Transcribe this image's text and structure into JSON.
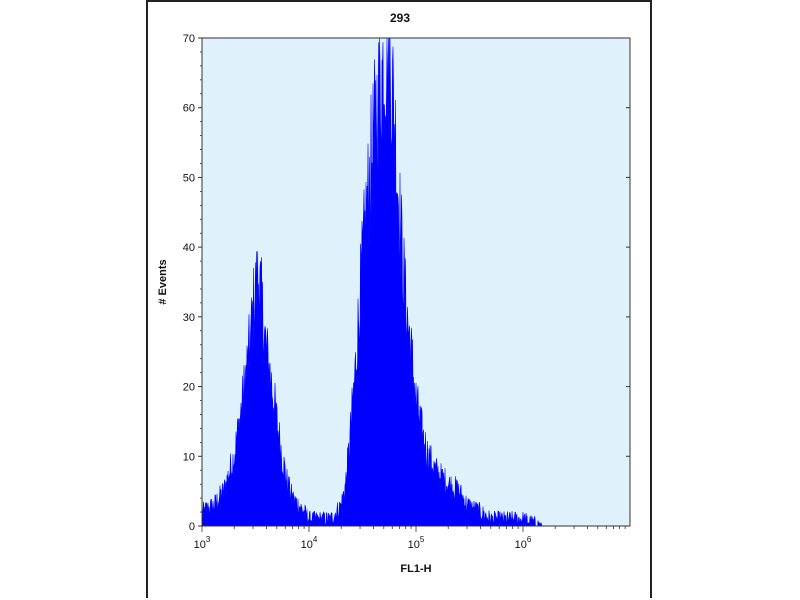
{
  "chart_data": {
    "type": "area",
    "title": "293",
    "xlabel": "FL1-H",
    "ylabel": "# Events",
    "x_scale": "log",
    "xlim": [
      1000,
      10000000
    ],
    "ylim": [
      0,
      70
    ],
    "x_tick_labels": [
      {
        "base": "10",
        "exp": "3"
      },
      {
        "base": "10",
        "exp": "4"
      },
      {
        "base": "10",
        "exp": "5"
      },
      {
        "base": "10",
        "exp": "6"
      }
    ],
    "y_ticks": [
      0,
      10,
      20,
      30,
      40,
      50,
      60,
      70
    ],
    "background_color": "#dff1fb",
    "fill_color": "#0000ff",
    "series": [
      {
        "x": [
          1000,
          1300,
          1600,
          2000,
          2400,
          2800,
          3100,
          3400,
          3700,
          4000,
          4500,
          5000,
          5600,
          6300,
          7000,
          8000,
          9000,
          10000,
          12000,
          14000,
          16000,
          18000,
          20000,
          22000,
          24000,
          27000,
          30000,
          34000,
          38000,
          42000,
          46000,
          50000,
          54000,
          58000,
          62000,
          66000,
          70000,
          75000,
          80000,
          90000,
          100000,
          115000,
          130000,
          150000,
          170000,
          200000,
          250000,
          300000,
          400000,
          500000,
          700000,
          1000000,
          1500000
        ],
        "values": [
          2,
          3,
          5,
          10,
          18,
          26,
          33,
          36,
          30,
          25,
          20,
          15,
          10,
          6,
          4,
          3,
          2,
          1,
          1,
          1,
          1,
          2,
          3,
          6,
          12,
          22,
          33,
          44,
          52,
          58,
          63,
          66,
          68,
          65,
          60,
          52,
          45,
          38,
          32,
          25,
          18,
          13,
          10,
          8,
          7,
          6,
          5,
          3,
          2,
          1,
          1,
          1,
          0
        ]
      }
    ]
  }
}
